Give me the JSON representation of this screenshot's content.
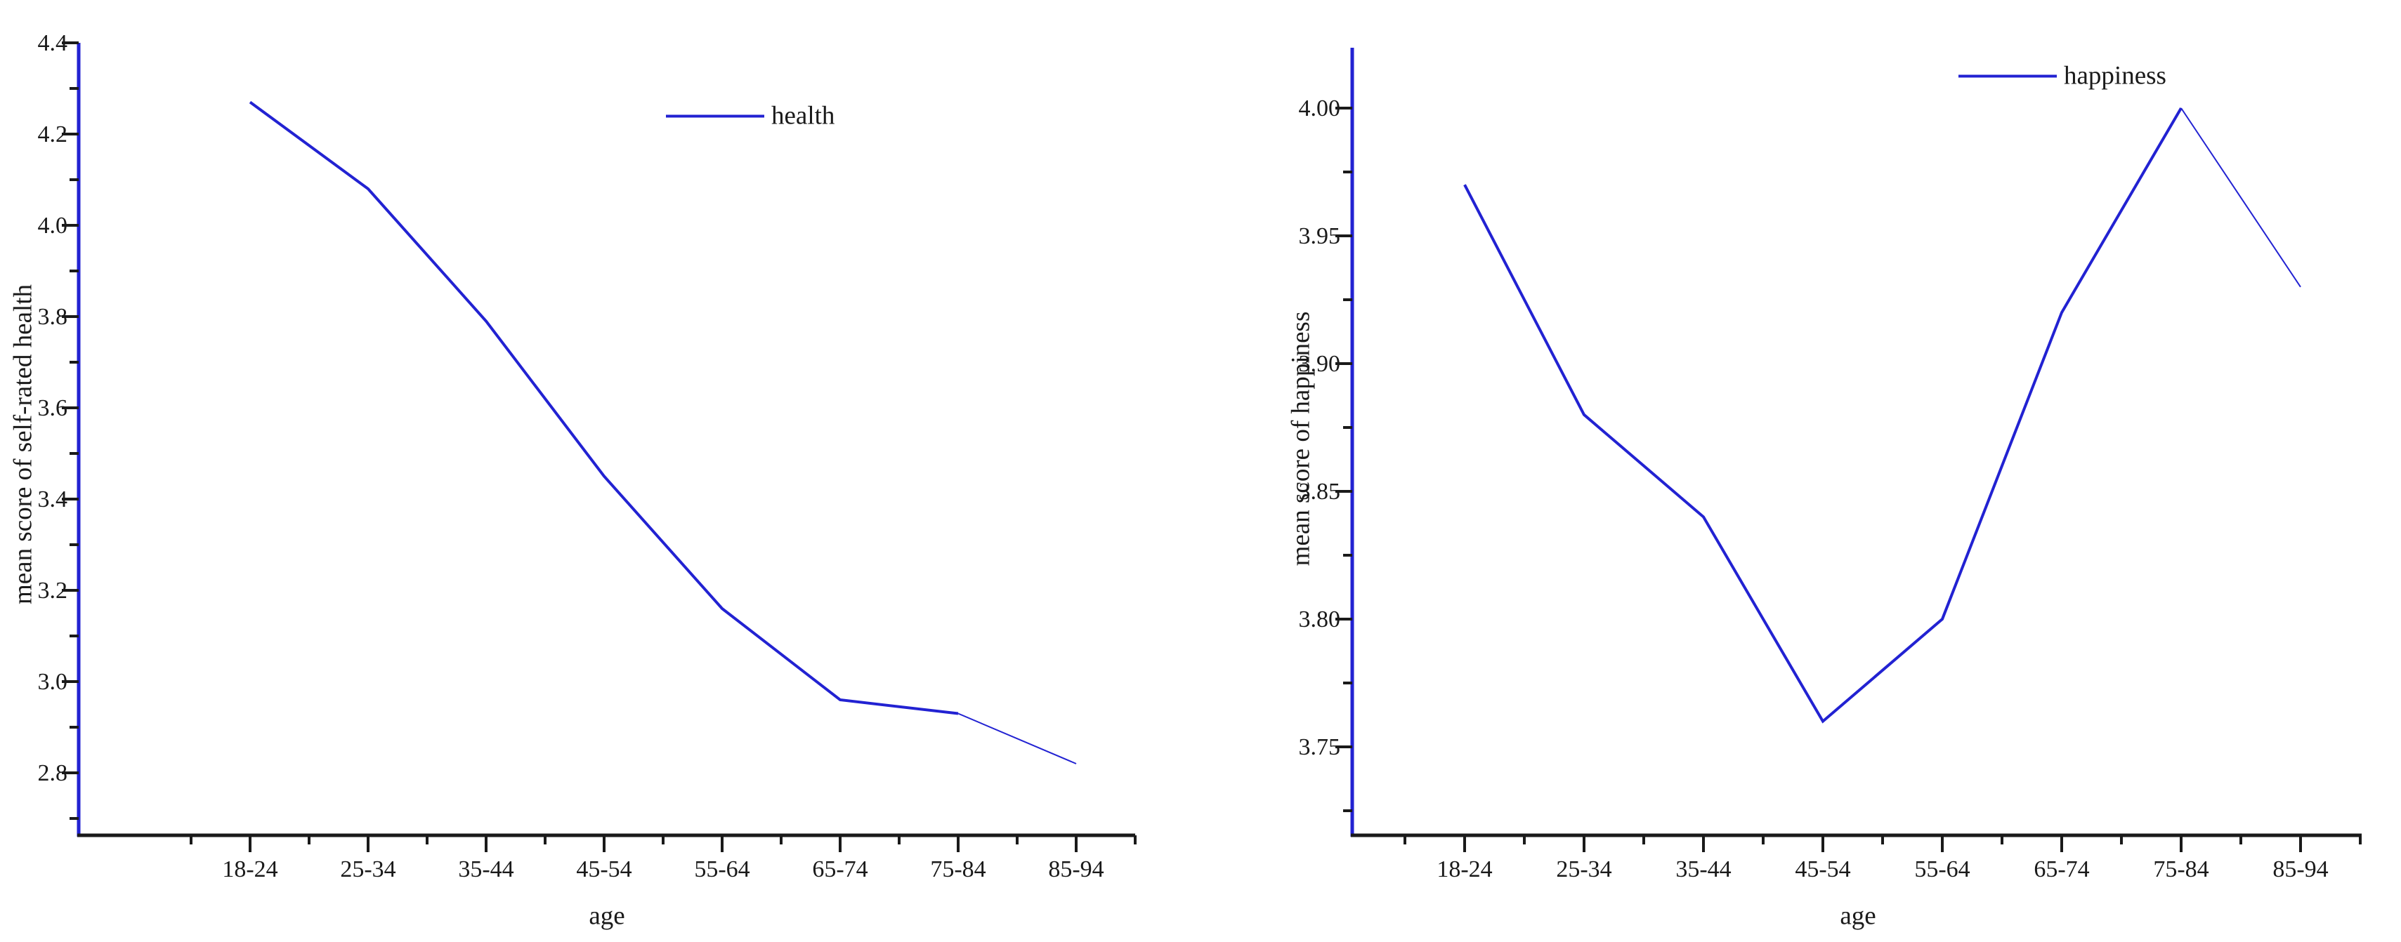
{
  "figure": {
    "background": "#ffffff",
    "text_color": "#1a1a1a",
    "axis_line_color_y": "#2222d2",
    "axis_line_color_x": "#1a1a1a",
    "tick_color": "#1a1a1a"
  },
  "chart_data": [
    {
      "type": "line",
      "title": "",
      "legend": "health",
      "xlabel": "age",
      "ylabel": "mean score of self-rated health",
      "categories": [
        "18-24",
        "25-34",
        "35-44",
        "45-54",
        "55-64",
        "65-74",
        "75-84",
        "85-94"
      ],
      "values": [
        4.27,
        4.08,
        3.79,
        3.45,
        3.16,
        2.96,
        2.93,
        2.82
      ],
      "y_major_ticks": [
        2.8,
        3.0,
        3.2,
        3.4,
        3.6,
        3.8,
        4.0,
        4.2,
        4.4
      ],
      "y_tick_labels": [
        "2.8",
        "3.0",
        "3.2",
        "3.4",
        "3.6",
        "3.8",
        "4.0",
        "4.2",
        "4.4"
      ],
      "y_minor_step": 0.1,
      "ylim": [
        2.66,
        4.4
      ],
      "line_color": "#2222d2",
      "legend_position": "top-center",
      "grid": false
    },
    {
      "type": "line",
      "title": "",
      "legend": "happiness",
      "xlabel": "age",
      "ylabel": "mean score of happiness",
      "categories": [
        "18-24",
        "25-34",
        "35-44",
        "45-54",
        "55-64",
        "65-74",
        "75-84",
        "85-94"
      ],
      "values": [
        3.97,
        3.88,
        3.84,
        3.76,
        3.8,
        3.92,
        4.0,
        3.93
      ],
      "y_major_ticks": [
        3.75,
        3.8,
        3.85,
        3.9,
        3.95,
        4.0
      ],
      "y_tick_labels": [
        "3.75",
        "3.80",
        "3.85",
        "3.90",
        "3.95",
        "4.00"
      ],
      "y_minor_step": 0.025,
      "ylim": [
        3.715,
        4.024
      ],
      "line_color": "#2222d2",
      "legend_position": "top-center",
      "grid": false
    }
  ]
}
